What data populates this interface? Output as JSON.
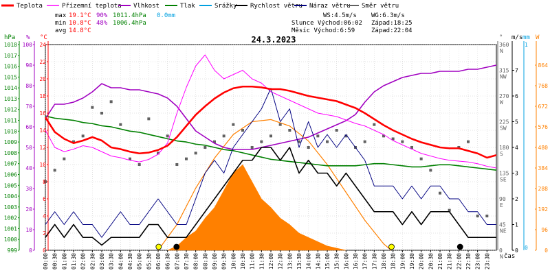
{
  "legend": [
    {
      "label": "Teplota",
      "color": "#ff0000"
    },
    {
      "label": "Přízemní teplota",
      "color": "#ff00ff"
    },
    {
      "label": "Vlhkost",
      "color": "#a000c0"
    },
    {
      "label": "Tlak",
      "color": "#008000"
    },
    {
      "label": "Srážky",
      "color": "#00a0e0"
    },
    {
      "label": "Rychlost větru",
      "color": "#000000"
    },
    {
      "label": "Náraz větru",
      "color": "#000080"
    },
    {
      "label": "Směr větru",
      "color": "#606060"
    }
  ],
  "stats": {
    "max": {
      "label": "max",
      "temp": "19.1°C",
      "hum": "90%",
      "press": "1011.4hPa",
      "rain": "0.0mm"
    },
    "min": {
      "label": "min",
      "temp": "10.8°C",
      "hum": "48%",
      "press": "1006.4hPa"
    },
    "avg": {
      "label": "avg",
      "temp": "14.8°C"
    }
  },
  "wind_info": {
    "ws": "WS:4.5m/s",
    "wg": "WG:6.3m/s"
  },
  "sun": {
    "rise": "Slunce Východ:06:02",
    "set": "Západ:18:25"
  },
  "moon": {
    "rise": "Měsíc  Východ:6:59",
    "set": "Západ:22:04"
  },
  "title": "24.3.2023",
  "units_left": {
    "hpa": "hPa",
    "pct": "%",
    "c": "°C"
  },
  "units_right": {
    "deg": "°",
    "ms": "m/s",
    "mm": "mm",
    "w": "W"
  },
  "time_label": "čas",
  "chart_data": {
    "type": "line",
    "title": "24.3.2023",
    "x_range": [
      "00:00",
      "24:00"
    ],
    "x_ticks": [
      "00:00",
      "00:30",
      "01:00",
      "01:30",
      "02:00",
      "02:30",
      "03:00",
      "03:30",
      "04:00",
      "04:30",
      "05:00",
      "05:30",
      "06:00",
      "06:30",
      "07:00",
      "07:30",
      "08:00",
      "08:30",
      "09:00",
      "09:30",
      "10:00",
      "10:30",
      "11:00",
      "11:30",
      "12:00",
      "12:30",
      "13:00",
      "13:30",
      "14:00",
      "14:30",
      "15:00",
      "15:30",
      "16:00",
      "16:30",
      "17:00",
      "17:30",
      "18:00",
      "18:30",
      "19:00",
      "19:30",
      "20:00",
      "20:30",
      "21:00",
      "21:30",
      "22:00",
      "22:30",
      "23:00",
      "23:30"
    ],
    "axes": {
      "pressure": {
        "unit": "hPa",
        "min": 999,
        "max": 1018,
        "ticks": [
          999,
          1000,
          1001,
          1002,
          1003,
          1004,
          1005,
          1006,
          1007,
          1008,
          1009,
          1010,
          1011,
          1012,
          1013,
          1014,
          1015,
          1016,
          1017,
          1018
        ],
        "color": "#008000"
      },
      "humidity": {
        "unit": "%",
        "min": 0,
        "max": 100,
        "ticks": [
          0,
          10,
          20,
          30,
          40,
          50,
          60,
          70,
          80,
          90,
          100
        ],
        "color": "#a000c0"
      },
      "temperature": {
        "unit": "°C",
        "min": 0,
        "max": 24,
        "ticks": [
          0,
          2,
          4,
          6,
          8,
          10,
          12,
          14,
          16,
          18,
          20,
          22,
          24
        ],
        "color": "#ff0000"
      },
      "direction": {
        "unit": "°",
        "min": 0,
        "max": 360,
        "ticks": [
          {
            "v": 0,
            "l": "0"
          },
          {
            "v": 45,
            "l": "45"
          },
          {
            "v": 90,
            "l": "90"
          },
          {
            "v": 135,
            "l": "135"
          },
          {
            "v": 180,
            "l": "180"
          },
          {
            "v": 225,
            "l": "225"
          },
          {
            "v": 270,
            "l": "270"
          },
          {
            "v": 315,
            "l": "315"
          },
          {
            "v": 360,
            "l": "360"
          }
        ],
        "dir_labels": [
          {
            "v": 0,
            "l": "N"
          },
          {
            "v": 45,
            "l": "NE"
          },
          {
            "v": 90,
            "l": "E"
          },
          {
            "v": 135,
            "l": "SE"
          },
          {
            "v": 180,
            "l": "S"
          },
          {
            "v": 225,
            "l": "SW"
          },
          {
            "v": 270,
            "l": "W"
          },
          {
            "v": 315,
            "l": "NW"
          },
          {
            "v": 360,
            "l": "N"
          }
        ],
        "color": "#606060"
      },
      "wind_speed": {
        "unit": "m/s",
        "min": 0,
        "max": 8,
        "ticks": [
          0,
          1,
          2,
          3,
          4,
          5,
          6,
          7
        ],
        "color": "#000000"
      },
      "rain": {
        "unit": "mm",
        "min": 0,
        "max": 1,
        "ticks": [
          0,
          1
        ],
        "color": "#00a0e0"
      },
      "solar": {
        "unit": "W",
        "min": 0,
        "max": 960,
        "ticks": [
          0,
          96,
          192,
          288,
          384,
          480,
          576,
          672,
          768,
          864
        ],
        "color": "#ff8000"
      }
    },
    "series": [
      {
        "name": "Teplota",
        "axis": "temperature",
        "color": "#ff0000",
        "x": [
          0,
          0.5,
          1,
          1.5,
          2,
          2.5,
          3,
          3.5,
          4,
          4.5,
          5,
          5.5,
          6,
          6.5,
          7,
          7.5,
          8,
          8.5,
          9,
          9.5,
          10,
          10.5,
          11,
          11.5,
          12,
          12.5,
          13,
          13.5,
          14,
          14.5,
          15,
          15.5,
          16,
          16.5,
          17,
          17.5,
          18,
          18.5,
          19,
          19.5,
          20,
          20.5,
          21,
          21.5,
          22,
          22.5,
          23,
          23.5,
          24
        ],
        "y": [
          15.5,
          13.8,
          13.0,
          12.5,
          12.8,
          13.2,
          12.8,
          12.0,
          11.8,
          11.5,
          11.3,
          11.4,
          11.7,
          12.2,
          13.2,
          14.5,
          15.8,
          16.8,
          17.7,
          18.4,
          18.9,
          19.1,
          19.1,
          19.0,
          18.8,
          18.8,
          18.6,
          18.3,
          18.0,
          17.8,
          17.6,
          17.4,
          17.0,
          16.6,
          16.0,
          15.3,
          14.6,
          14.0,
          13.5,
          13.0,
          12.6,
          12.3,
          12.0,
          11.9,
          11.9,
          11.6,
          11.3,
          10.8,
          11.1
        ]
      },
      {
        "name": "Přízemní teplota",
        "axis": "temperature",
        "color": "#ff00ff",
        "x": [
          0,
          0.5,
          1,
          1.5,
          2,
          2.5,
          3,
          3.5,
          4,
          4.5,
          5,
          5.5,
          6,
          6.5,
          7,
          7.5,
          8,
          8.5,
          9,
          9.5,
          10,
          10.5,
          11,
          11.5,
          12,
          12.5,
          13,
          13.5,
          14,
          14.5,
          15,
          15.5,
          16,
          16.5,
          17,
          17.5,
          18,
          18.5,
          19,
          19.5,
          20,
          20.5,
          21,
          21.5,
          22,
          22.5,
          23,
          23.5,
          24
        ],
        "y": [
          14.0,
          12.0,
          11.5,
          11.8,
          12.2,
          12.0,
          11.5,
          11.0,
          10.8,
          10.5,
          10.3,
          10.6,
          11.2,
          12.5,
          16.0,
          19.0,
          21.5,
          22.8,
          21.0,
          20.0,
          20.5,
          21.0,
          20.0,
          19.5,
          18.5,
          18.0,
          17.5,
          17.0,
          16.5,
          16.0,
          15.8,
          15.6,
          15.2,
          14.8,
          14.5,
          14.0,
          13.5,
          12.8,
          12.3,
          11.8,
          11.3,
          11.0,
          10.7,
          10.5,
          10.4,
          10.3,
          10.1,
          9.8,
          9.6
        ]
      },
      {
        "name": "Vlhkost",
        "axis": "humidity",
        "color": "#a000c0",
        "x": [
          0,
          0.5,
          1,
          1.5,
          2,
          2.5,
          3,
          3.5,
          4,
          4.5,
          5,
          5.5,
          6,
          6.5,
          7,
          7.5,
          8,
          8.5,
          9,
          9.5,
          10,
          10.5,
          11,
          11.5,
          12,
          12.5,
          13,
          13.5,
          14,
          14.5,
          15,
          15.5,
          16,
          16.5,
          17,
          17.5,
          18,
          18.5,
          19,
          19.5,
          20,
          20.5,
          21,
          21.5,
          22,
          22.5,
          23,
          23.5,
          24
        ],
        "y": [
          64,
          71,
          71,
          72,
          74,
          77,
          81,
          79,
          79,
          78,
          78,
          77,
          76,
          74,
          70,
          64,
          58,
          55,
          52,
          50,
          49,
          49,
          49,
          50,
          51,
          52,
          53,
          54,
          55,
          57,
          59,
          61,
          63,
          66,
          72,
          77,
          80,
          82,
          84,
          85,
          86,
          86,
          87,
          87,
          87,
          88,
          88,
          89,
          90
        ]
      },
      {
        "name": "Tlak",
        "axis": "pressure",
        "color": "#008000",
        "x": [
          0,
          0.5,
          1,
          1.5,
          2,
          2.5,
          3,
          3.5,
          4,
          4.5,
          5,
          5.5,
          6,
          6.5,
          7,
          7.5,
          8,
          8.5,
          9,
          9.5,
          10,
          10.5,
          11,
          11.5,
          12,
          12.5,
          13,
          13.5,
          14,
          14.5,
          15,
          15.5,
          16,
          16.5,
          17,
          17.5,
          18,
          18.5,
          19,
          19.5,
          20,
          20.5,
          21,
          21.5,
          22,
          22.5,
          23,
          23.5,
          24
        ],
        "y": [
          1011.4,
          1011.2,
          1011.1,
          1011.0,
          1010.8,
          1010.7,
          1010.5,
          1010.4,
          1010.2,
          1010.0,
          1009.9,
          1009.7,
          1009.5,
          1009.3,
          1009.1,
          1009.0,
          1008.8,
          1008.7,
          1008.5,
          1008.3,
          1008.2,
          1008.0,
          1007.8,
          1007.6,
          1007.4,
          1007.3,
          1007.2,
          1007.1,
          1007.0,
          1006.9,
          1006.8,
          1006.8,
          1006.8,
          1006.8,
          1006.9,
          1007.0,
          1007.0,
          1006.9,
          1006.8,
          1006.7,
          1006.7,
          1006.8,
          1006.9,
          1006.9,
          1006.8,
          1006.7,
          1006.6,
          1006.5,
          1006.4
        ]
      },
      {
        "name": "Rychlost větru",
        "axis": "wind_speed",
        "color": "#000000",
        "x": [
          0,
          0.5,
          1,
          1.5,
          2,
          2.5,
          3,
          3.5,
          4,
          4.5,
          5,
          5.5,
          6,
          6.5,
          7,
          7.5,
          8,
          8.5,
          9,
          9.5,
          10,
          10.5,
          11,
          11.5,
          12,
          12.5,
          13,
          13.5,
          14,
          14.5,
          15,
          15.5,
          16,
          16.5,
          17,
          17.5,
          18,
          18.5,
          19,
          19.5,
          20,
          20.5,
          21,
          21.5,
          22,
          22.5,
          23,
          23.5,
          24
        ],
        "y": [
          0.5,
          1.0,
          0.5,
          1.0,
          0.5,
          0.5,
          0.2,
          0.5,
          0.5,
          0.5,
          0.5,
          1.0,
          1.0,
          0.5,
          0.5,
          0.5,
          1.0,
          1.5,
          2.0,
          2.5,
          3.0,
          3.5,
          3.5,
          4.0,
          4.0,
          3.5,
          4.0,
          3.0,
          3.5,
          3.0,
          3.0,
          2.5,
          3.0,
          2.5,
          2.0,
          1.5,
          1.5,
          1.5,
          1.0,
          1.5,
          1.0,
          1.5,
          1.5,
          1.5,
          1.0,
          0.5,
          0.5,
          0.5,
          0.5
        ]
      },
      {
        "name": "Náraz větru",
        "axis": "wind_speed",
        "color": "#000080",
        "x": [
          0,
          0.5,
          1,
          1.5,
          2,
          2.5,
          3,
          3.5,
          4,
          4.5,
          5,
          5.5,
          6,
          6.5,
          7,
          7.5,
          8,
          8.5,
          9,
          9.5,
          10,
          10.5,
          11,
          11.5,
          12,
          12.5,
          13,
          13.5,
          14,
          14.5,
          15,
          15.5,
          16,
          16.5,
          17,
          17.5,
          18,
          18.5,
          19,
          19.5,
          20,
          20.5,
          21,
          21.5,
          22,
          22.5,
          23,
          23.5,
          24
        ],
        "y": [
          1.0,
          1.5,
          1.0,
          1.5,
          1.0,
          1.0,
          0.5,
          1.0,
          1.5,
          1.0,
          1.0,
          1.5,
          2.0,
          1.5,
          1.0,
          1.0,
          2.0,
          3.0,
          3.5,
          3.0,
          4.0,
          4.5,
          5.0,
          5.5,
          6.3,
          5.0,
          5.5,
          4.0,
          5.0,
          4.0,
          4.5,
          4.0,
          4.5,
          4.0,
          3.5,
          2.5,
          2.5,
          2.5,
          2.0,
          2.5,
          2.0,
          2.5,
          2.5,
          2.0,
          2.0,
          1.5,
          1.5,
          1.0,
          1.0
        ]
      },
      {
        "name": "Směr větru",
        "axis": "direction",
        "color": "#606060",
        "type": "scatter",
        "x": [
          0,
          0.5,
          1,
          1.5,
          2,
          2.5,
          3,
          3.5,
          4,
          4.5,
          5,
          5.5,
          6,
          6.5,
          7,
          7.5,
          8,
          8.5,
          9,
          9.5,
          10,
          10.5,
          11,
          11.5,
          12,
          12.5,
          13,
          13.5,
          14,
          14.5,
          15,
          15.5,
          16,
          16.5,
          17,
          17.5,
          18,
          18.5,
          19,
          19.5,
          20,
          20.5,
          21,
          21.5,
          22,
          22.5,
          23,
          23.5
        ],
        "y": [
          120,
          140,
          160,
          190,
          200,
          250,
          240,
          260,
          220,
          160,
          150,
          230,
          170,
          200,
          150,
          160,
          170,
          180,
          190,
          200,
          220,
          210,
          180,
          190,
          200,
          220,
          210,
          190,
          180,
          200,
          190,
          210,
          200,
          180,
          190,
          220,
          200,
          195,
          190,
          180,
          160,
          140,
          100,
          70,
          180,
          190,
          60,
          60
        ]
      }
    ],
    "solar_radiation": {
      "name": "Sluneční záření",
      "axis": "solar",
      "color": "#ff8000",
      "x": [
        6.5,
        7,
        7.5,
        8,
        8.5,
        9,
        9.5,
        10,
        10.5,
        11,
        11.5,
        12,
        12.5,
        13,
        13.5,
        14,
        14.5,
        15,
        15.5,
        16
      ],
      "y": [
        0,
        20,
        60,
        90,
        150,
        200,
        280,
        360,
        400,
        320,
        240,
        200,
        150,
        120,
        80,
        60,
        40,
        20,
        10,
        0
      ]
    },
    "theoretical_solar": {
      "name": "Teoretické záření",
      "axis": "solar",
      "color": "#ff8000",
      "x": [
        6,
        7,
        8,
        9,
        10,
        11,
        12,
        13,
        14,
        15,
        16,
        17,
        18,
        18.4
      ],
      "y": [
        0,
        120,
        290,
        430,
        540,
        600,
        610,
        580,
        510,
        400,
        270,
        140,
        30,
        0
      ]
    },
    "markers": [
      {
        "name": "sunrise",
        "x": 6.03,
        "color": "#ffff00"
      },
      {
        "name": "sunset",
        "x": 18.42,
        "color": "#ffff00"
      },
      {
        "name": "moonrise",
        "x": 6.98,
        "color": "#000000"
      },
      {
        "name": "moonset",
        "x": 22.07,
        "color": "#000000"
      }
    ]
  }
}
